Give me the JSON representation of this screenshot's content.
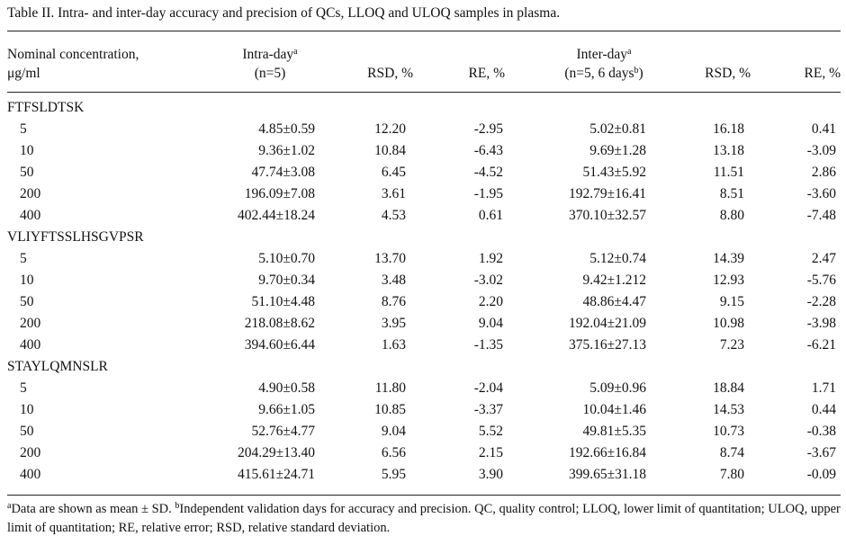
{
  "caption": "Table II. Intra- and inter-day accuracy and precision of QCs, LLOQ and ULOQ samples in plasma.",
  "header": {
    "nominal_line1": "Nominal concentration,",
    "nominal_line2": "μg/ml",
    "intra_line1": "Intra-day",
    "intra_sup": "a",
    "intra_line2": "(n=5)",
    "rsd": "RSD, %",
    "re": "RE, %",
    "inter_line1": "Inter-day",
    "inter_sup": "a",
    "inter_line2_pre": "(n=5, 6 days",
    "inter_line2_sup": "b",
    "inter_line2_post": ")",
    "rsd2": "RSD, %",
    "re2": "RE, %"
  },
  "groups": [
    {
      "name": "FTFSLDTSK",
      "rows": [
        [
          "5",
          "4.85±0.59",
          "12.20",
          "-2.95",
          "5.02±0.81",
          "16.18",
          "0.41"
        ],
        [
          "10",
          "9.36±1.02",
          "10.84",
          "-6.43",
          "9.69±1.28",
          "13.18",
          "-3.09"
        ],
        [
          "50",
          "47.74±3.08",
          "6.45",
          "-4.52",
          "51.43±5.92",
          "11.51",
          "2.86"
        ],
        [
          "200",
          "196.09±7.08",
          "3.61",
          "-1.95",
          "192.79±16.41",
          "8.51",
          "-3.60"
        ],
        [
          "400",
          "402.44±18.24",
          "4.53",
          "0.61",
          "370.10±32.57",
          "8.80",
          "-7.48"
        ]
      ]
    },
    {
      "name": "VLIYFTSSLHSGVPSR",
      "rows": [
        [
          "5",
          "5.10±0.70",
          "13.70",
          "1.92",
          "5.12±0.74",
          "14.39",
          "2.47"
        ],
        [
          "10",
          "9.70±0.34",
          "3.48",
          "-3.02",
          "9.42±1.212",
          "12.93",
          "-5.76"
        ],
        [
          "50",
          "51.10±4.48",
          "8.76",
          "2.20",
          "48.86±4.47",
          "9.15",
          "-2.28"
        ],
        [
          "200",
          "218.08±8.62",
          "3.95",
          "9.04",
          "192.04±21.09",
          "10.98",
          "-3.98"
        ],
        [
          "400",
          "394.60±6.44",
          "1.63",
          "-1.35",
          "375.16±27.13",
          "7.23",
          "-6.21"
        ]
      ]
    },
    {
      "name": "STAYLQMNSLR",
      "rows": [
        [
          "5",
          "4.90±0.58",
          "11.80",
          "-2.04",
          "5.09±0.96",
          "18.84",
          "1.71"
        ],
        [
          "10",
          "9.66±1.05",
          "10.85",
          "-3.37",
          "10.04±1.46",
          "14.53",
          "0.44"
        ],
        [
          "50",
          "52.76±4.77",
          "9.04",
          "5.52",
          "49.81±5.35",
          "10.73",
          "-0.38"
        ],
        [
          "200",
          "204.29±13.40",
          "6.56",
          "2.15",
          "192.66±16.84",
          "8.74",
          "-3.67"
        ],
        [
          "400",
          "415.61±24.71",
          "5.95",
          "3.90",
          "399.65±31.18",
          "7.80",
          "-0.09"
        ]
      ]
    }
  ],
  "footnote": {
    "a_mark": "a",
    "a_text": "Data are shown as mean ± SD. ",
    "b_mark": "b",
    "b_text": "Independent validation days for accuracy and precision. QC, quality control; LLOQ, lower limit of quantitation; ULOQ, upper limit of quantitation; RE, relative error; RSD, relative standard deviation."
  }
}
